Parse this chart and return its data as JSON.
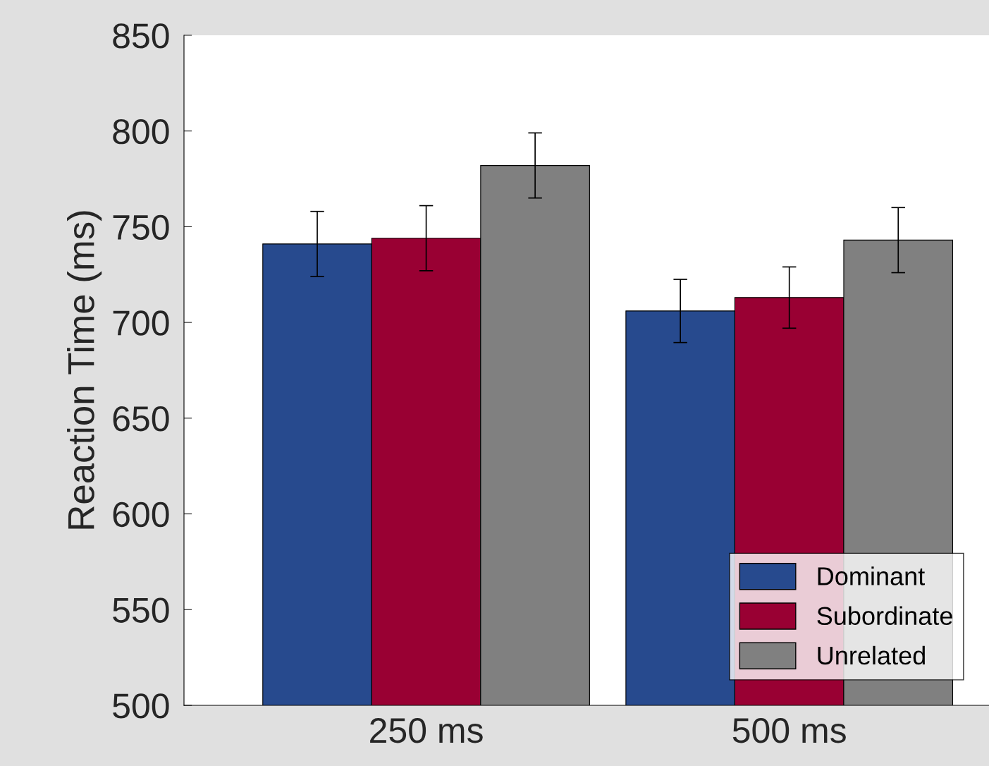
{
  "chart_data": {
    "type": "bar",
    "ylabel": "Reaction Time (ms)",
    "categories": [
      "250 ms",
      "500 ms"
    ],
    "series": [
      {
        "name": "Dominant",
        "color": "#274a8e",
        "values": [
          741,
          706
        ],
        "errors": [
          17,
          16.5
        ]
      },
      {
        "name": "Subordinate",
        "color": "#990033",
        "values": [
          744,
          713
        ],
        "errors": [
          17,
          16
        ]
      },
      {
        "name": "Unrelated",
        "color": "#808080",
        "values": [
          782,
          743
        ],
        "errors": [
          17,
          17
        ]
      }
    ],
    "ylim": [
      500,
      850
    ],
    "yticks": [
      500,
      550,
      600,
      650,
      700,
      750,
      800,
      850
    ],
    "grid": false,
    "legend": "bottom right"
  }
}
